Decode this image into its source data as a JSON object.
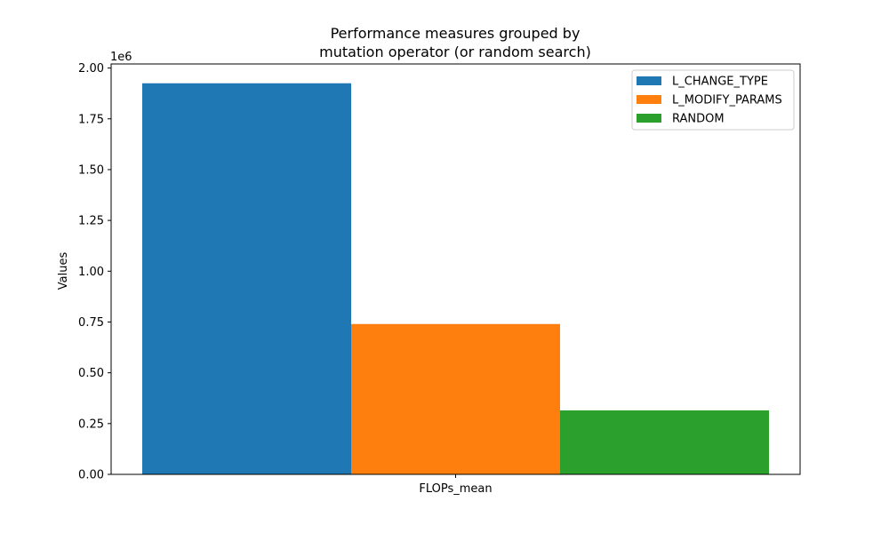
{
  "chart_data": {
    "type": "bar",
    "title_lines": [
      "Performance measures grouped by",
      "mutation operator (or random search)"
    ],
    "xlabel": "",
    "ylabel": "Values",
    "categories": [
      "FLOPs_mean"
    ],
    "series": [
      {
        "name": "L_CHANGE_TYPE",
        "values": [
          1925000
        ],
        "color": "#1f77b4"
      },
      {
        "name": "L_MODIFY_PARAMS",
        "values": [
          740000
        ],
        "color": "#ff7f0e"
      },
      {
        "name": "RANDOM",
        "values": [
          315000
        ],
        "color": "#2ca02c"
      }
    ],
    "ylim": [
      0,
      2020000
    ],
    "yticks": [
      0,
      250000,
      500000,
      750000,
      1000000,
      1250000,
      1500000,
      1750000,
      2000000
    ],
    "ytick_labels": [
      "0.00",
      "0.25",
      "0.50",
      "0.75",
      "1.00",
      "1.25",
      "1.50",
      "1.75",
      "2.00"
    ],
    "y_offset_label": "1e6",
    "legend_position": "top-right",
    "grid": false
  }
}
